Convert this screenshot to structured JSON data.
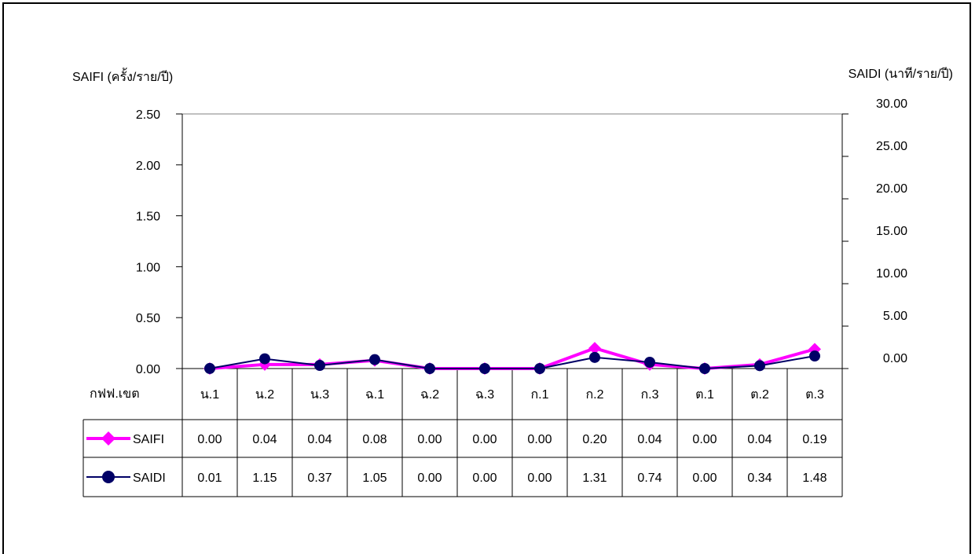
{
  "chart_data": {
    "type": "line",
    "ylabel_left": "SAIFI (ครั้ง/ราย/ปี)",
    "ylabel_right": "SAIDI (นาที/ราย/ปี)",
    "table_header": "กฟฟ.เขต",
    "categories": [
      "น.1",
      "น.2",
      "น.3",
      "ฉ.1",
      "ฉ.2",
      "ฉ.3",
      "ก.1",
      "ก.2",
      "ก.3",
      "ต.1",
      "ต.2",
      "ต.3"
    ],
    "y_left": {
      "min": 0,
      "max": 2.5,
      "ticks": [
        "0.00",
        "0.50",
        "1.00",
        "1.50",
        "2.00",
        "2.50"
      ]
    },
    "y_right": {
      "min": 0,
      "max": 30,
      "ticks": [
        "0.00",
        "5.00",
        "10.00",
        "15.00",
        "20.00",
        "25.00",
        "30.00"
      ]
    },
    "series": [
      {
        "name": "SAIFI",
        "axis": "left",
        "color": "#ff00ff",
        "marker": "diamond",
        "values": [
          0.0,
          0.04,
          0.04,
          0.08,
          0.0,
          0.0,
          0.0,
          0.2,
          0.04,
          0.0,
          0.04,
          0.19
        ],
        "labels": [
          "0.00",
          "0.04",
          "0.04",
          "0.08",
          "0.00",
          "0.00",
          "0.00",
          "0.20",
          "0.04",
          "0.00",
          "0.04",
          "0.19"
        ]
      },
      {
        "name": "SAIDI",
        "axis": "right",
        "color": "#000066",
        "marker": "circle",
        "values": [
          0.01,
          1.15,
          0.37,
          1.05,
          0.0,
          0.0,
          0.0,
          1.31,
          0.74,
          0.0,
          0.34,
          1.48
        ],
        "labels": [
          "0.01",
          "1.15",
          "0.37",
          "1.05",
          "0.00",
          "0.00",
          "0.00",
          "1.31",
          "0.74",
          "0.00",
          "0.34",
          "1.48"
        ]
      }
    ],
    "grid": false,
    "legend": "data-table"
  }
}
